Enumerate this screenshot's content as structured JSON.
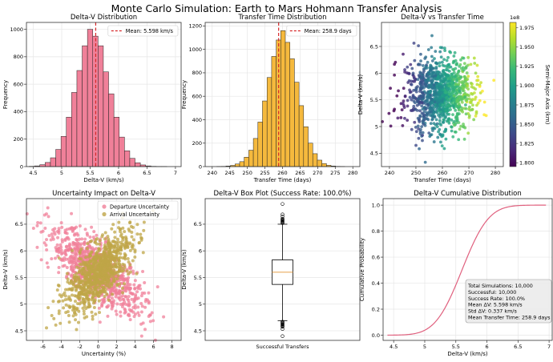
{
  "suptitle": "Monte Carlo Simulation: Earth to Mars Hohmann Transfer Analysis",
  "colors": {
    "pink": "#f08099",
    "orange": "#f5b93d",
    "olive": "#bfa547",
    "red": "#d62728",
    "line": "#e0607e"
  },
  "chart_data": [
    {
      "id": "dv_hist",
      "type": "bar",
      "title": "Delta-V Distribution",
      "xlabel": "Delta-V (km/s)",
      "ylabel": "Frequency",
      "xlim": [
        4.38,
        7.1
      ],
      "ylim": [
        0,
        1050
      ],
      "xticks": [
        4.5,
        5.0,
        5.5,
        6.0,
        6.5,
        7.0
      ],
      "yticks": [
        0,
        200,
        400,
        600,
        800,
        1000
      ],
      "bin_start": 4.43,
      "bin_width": 0.093,
      "values": [
        2,
        5,
        14,
        30,
        64,
        125,
        220,
        360,
        540,
        700,
        880,
        1000,
        950,
        880,
        690,
        530,
        360,
        215,
        115,
        60,
        28,
        12,
        5,
        2,
        1,
        1
      ],
      "mean_line": 5.598,
      "legend": "Mean: 5.598 km/s"
    },
    {
      "id": "tt_hist",
      "type": "bar",
      "title": "Transfer Time Distribution",
      "xlabel": "Transfer Time (days)",
      "ylabel": "Frequency",
      "xlim": [
        238,
        282
      ],
      "ylim": [
        0,
        1230
      ],
      "xticks": [
        240,
        245,
        250,
        255,
        260,
        265,
        270,
        275,
        280
      ],
      "yticks": [
        0,
        200,
        400,
        600,
        800,
        1000,
        1200
      ],
      "bin_start": 241.3,
      "bin_width": 1.3,
      "values": [
        1,
        2,
        5,
        10,
        22,
        42,
        80,
        140,
        240,
        380,
        560,
        760,
        940,
        1080,
        1160,
        1060,
        920,
        720,
        520,
        340,
        200,
        110,
        55,
        26,
        11,
        5,
        2,
        1
      ],
      "mean_line": 258.9,
      "legend": "Mean: 258.9 days"
    },
    {
      "id": "dv_vs_tt",
      "type": "scatter",
      "title": "Delta-V vs Transfer Time",
      "xlabel": "Transfer Time (days)",
      "ylabel": "Delta-V (km/s)",
      "xlim": [
        237,
        283
      ],
      "ylim": [
        4.25,
        6.95
      ],
      "xticks": [
        240,
        250,
        260,
        270,
        280
      ],
      "yticks": [
        4.5,
        5.0,
        5.5,
        6.0,
        6.5
      ],
      "center": [
        258.9,
        5.598
      ],
      "spread": [
        6.5,
        0.337
      ],
      "n": 1100,
      "colorbar": {
        "label": "Semi-Major Axis (km)",
        "exponent": "1e8",
        "range": [
          1.795,
          1.982
        ],
        "ticks": [
          "1.800",
          "1.825",
          "1.850",
          "1.875",
          "1.900",
          "1.925",
          "1.950",
          "1.975"
        ]
      }
    },
    {
      "id": "uncertainty",
      "type": "scatter",
      "title": "Uncertainty Impact on Delta-V",
      "xlabel": "Uncertainty (%)",
      "ylabel": "Delta-V (km/s)",
      "xlim": [
        -7.8,
        9.0
      ],
      "ylim": [
        4.32,
        6.98
      ],
      "xticks": [
        -6,
        -4,
        -2,
        0,
        2,
        4,
        6,
        8
      ],
      "yticks": [
        4.5,
        5.0,
        5.5,
        6.0,
        6.5
      ],
      "series": [
        {
          "name": "Departure Uncertainty",
          "slope": -0.115,
          "spread": 2.6,
          "n": 900
        },
        {
          "name": "Arrival Uncertainty",
          "slope": 0.14,
          "spread": 1.8,
          "n": 900
        }
      ]
    },
    {
      "id": "boxplot",
      "type": "box",
      "title": "Delta-V Box Plot (Success Rate: 100.0%)",
      "ylabel": "Delta-V (km/s)",
      "category": "Successful Transfers",
      "ylim": [
        4.32,
        6.98
      ],
      "yticks": [
        4.5,
        5.0,
        5.5,
        6.0,
        6.5
      ],
      "q1": 5.37,
      "median": 5.6,
      "q3": 5.83,
      "whisker_low": 4.69,
      "whisker_high": 6.5
    },
    {
      "id": "cdf",
      "type": "line",
      "title": "Delta-V Cumulative Distribution",
      "xlabel": "Delta-V (km/s)",
      "ylabel": "Cumulative Probability",
      "xlim": [
        4.33,
        7.05
      ],
      "ylim": [
        -0.04,
        1.05
      ],
      "xticks": [
        4.5,
        5.0,
        5.5,
        6.0,
        6.5,
        7.0
      ],
      "yticks": [
        0.0,
        0.2,
        0.4,
        0.6,
        0.8,
        1.0
      ],
      "x_range": [
        4.4,
        6.95
      ],
      "mean": 5.598,
      "std": 0.337,
      "stats_lines": [
        "Total Simulations: 10,000",
        "Successful: 10,000",
        "Success Rate: 100.0%",
        "Mean ΔV: 5.598 km/s",
        "Std ΔV: 0.337 km/s",
        "Mean Transfer Time: 258.9 days"
      ]
    }
  ]
}
